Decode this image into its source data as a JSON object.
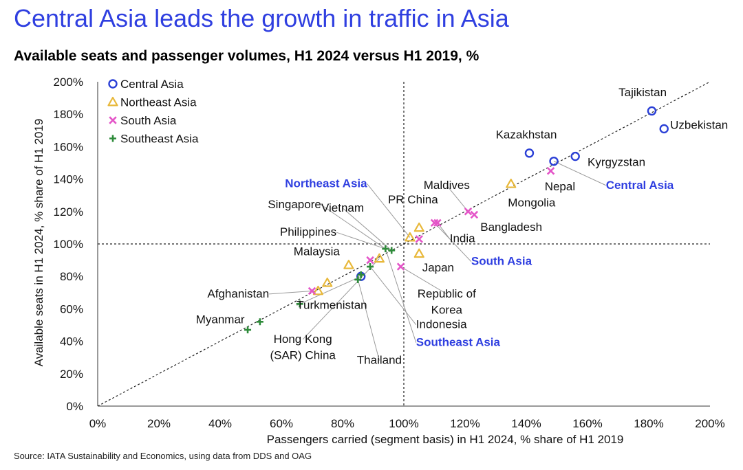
{
  "title": "Central Asia leads the growth in traffic in Asia",
  "subtitle": "Available seats and passenger volumes, H1 2024 versus H1 2019, %",
  "source": "Source: IATA Sustainability and Economics, using data from DDS and OAG",
  "colors": {
    "title": "#2f3fe0",
    "central_asia": "#2a3fd6",
    "northeast_asia": "#e8b83a",
    "south_asia": "#e455c8",
    "southeast_asia": "#2e8b3a",
    "region_label": "#2f3fe0"
  },
  "chart_data": {
    "type": "scatter",
    "title": "Available seats and passenger volumes, H1 2024 versus H1 2019, %",
    "xlabel": "Passengers carried (segment basis) in H1 2024, % share of H1 2019",
    "ylabel": "Available seats in H1 2024, % share of H1 2019",
    "xlim": [
      0,
      200
    ],
    "ylim": [
      0,
      200
    ],
    "x_ticks": [
      "0%",
      "20%",
      "40%",
      "60%",
      "80%",
      "100%",
      "120%",
      "140%",
      "160%",
      "180%",
      "200%"
    ],
    "y_ticks": [
      "0%",
      "20%",
      "40%",
      "60%",
      "80%",
      "100%",
      "120%",
      "140%",
      "160%",
      "180%",
      "200%"
    ],
    "reference_lines": {
      "diagonal": true,
      "x": 100,
      "y": 100
    },
    "legend_position": "top-left",
    "series": [
      {
        "name": "Central Asia",
        "marker": "circle",
        "color_key": "central_asia",
        "points": [
          {
            "x": 181,
            "y": 182
          },
          {
            "x": 185,
            "y": 171
          },
          {
            "x": 141,
            "y": 156
          },
          {
            "x": 149,
            "y": 151
          },
          {
            "x": 156,
            "y": 154
          },
          {
            "x": 86,
            "y": 80
          }
        ]
      },
      {
        "name": "Northeast Asia",
        "marker": "triangle",
        "color_key": "northeast_asia",
        "points": [
          {
            "x": 135,
            "y": 137
          },
          {
            "x": 105,
            "y": 110
          },
          {
            "x": 102,
            "y": 104
          },
          {
            "x": 105,
            "y": 94
          },
          {
            "x": 92,
            "y": 91
          },
          {
            "x": 82,
            "y": 87
          },
          {
            "x": 75,
            "y": 76
          },
          {
            "x": 72,
            "y": 71
          }
        ]
      },
      {
        "name": "South Asia",
        "marker": "x",
        "color_key": "south_asia",
        "points": [
          {
            "x": 148,
            "y": 145
          },
          {
            "x": 121,
            "y": 120
          },
          {
            "x": 123,
            "y": 118
          },
          {
            "x": 110,
            "y": 113
          },
          {
            "x": 111,
            "y": 113
          },
          {
            "x": 105,
            "y": 103
          },
          {
            "x": 99,
            "y": 86
          },
          {
            "x": 89,
            "y": 90
          },
          {
            "x": 70,
            "y": 71
          }
        ]
      },
      {
        "name": "Southeast Asia",
        "marker": "plus",
        "color_key": "southeast_asia",
        "points": [
          {
            "x": 94,
            "y": 97
          },
          {
            "x": 96,
            "y": 96
          },
          {
            "x": 89,
            "y": 86
          },
          {
            "x": 86,
            "y": 81
          },
          {
            "x": 85,
            "y": 78
          },
          {
            "x": 66,
            "y": 63
          },
          {
            "x": 53,
            "y": 52
          },
          {
            "x": 49,
            "y": 47
          }
        ]
      }
    ],
    "annotations": [
      {
        "text": "Tajikistan",
        "x": 181,
        "y": 182,
        "lx": 178,
        "ly": 191,
        "anchor": "middle"
      },
      {
        "text": "Uzbekistan",
        "x": 185,
        "y": 171,
        "lx": 187,
        "ly": 171,
        "anchor": "start"
      },
      {
        "text": "Kazakhstan",
        "x": 141,
        "y": 156,
        "lx": 140,
        "ly": 165,
        "anchor": "middle"
      },
      {
        "text": "Kyrgyzstan",
        "x": 156,
        "y": 154,
        "lx": 160,
        "ly": 148,
        "anchor": "start"
      },
      {
        "text": "Nepal",
        "x": 148,
        "y": 145,
        "lx": 146,
        "ly": 133,
        "anchor": "start"
      },
      {
        "text": "Central Asia",
        "x": 149,
        "y": 151,
        "lx": 166,
        "ly": 134,
        "anchor": "start",
        "region": true,
        "line": true
      },
      {
        "text": "Mongolia",
        "x": 135,
        "y": 137,
        "lx": 134,
        "ly": 123,
        "anchor": "start"
      },
      {
        "text": "Maldives",
        "x": 121,
        "y": 120,
        "lx": 114,
        "ly": 134,
        "anchor": "middle",
        "line": true
      },
      {
        "text": "Bangladesh",
        "x": 123,
        "y": 118,
        "lx": 125,
        "ly": 108,
        "anchor": "start"
      },
      {
        "text": "India",
        "x": 111,
        "y": 113,
        "lx": 115,
        "ly": 101,
        "anchor": "start",
        "line": true
      },
      {
        "text": "South Asia",
        "x": 110,
        "y": 113,
        "lx": 122,
        "ly": 87,
        "anchor": "start",
        "region": true,
        "line": true
      },
      {
        "text": "Japan",
        "x": 105,
        "y": 94,
        "lx": 106,
        "ly": 83,
        "anchor": "start"
      },
      {
        "text": "PR China",
        "x": 105,
        "y": 110,
        "lx": 103,
        "ly": 125,
        "anchor": "middle"
      },
      {
        "text": "Northeast Asia",
        "x": 102,
        "y": 104,
        "lx": 88,
        "ly": 135,
        "anchor": "end",
        "region": true,
        "line": true
      },
      {
        "text": "Singapore",
        "x": 94,
        "y": 97,
        "lx": 73,
        "ly": 122,
        "anchor": "end",
        "line": true
      },
      {
        "text": "Vietnam",
        "x": 96,
        "y": 96,
        "lx": 80,
        "ly": 120,
        "anchor": "middle",
        "line": true
      },
      {
        "text": "Philippines",
        "x": 94,
        "y": 97,
        "lx": 78,
        "ly": 105,
        "anchor": "end",
        "line": true
      },
      {
        "text": "Malaysia",
        "x": 89,
        "y": 90,
        "lx": 64,
        "ly": 93,
        "anchor": "start"
      },
      {
        "text": "Republic of",
        "x": 99,
        "y": 86,
        "lx": 114,
        "ly": 67,
        "anchor": "middle",
        "line": true
      },
      {
        "text": "Korea",
        "x": 99,
        "y": 86,
        "lx": 114,
        "ly": 57,
        "anchor": "middle"
      },
      {
        "text": "Afghanistan",
        "x": 70,
        "y": 71,
        "lx": 56,
        "ly": 67,
        "anchor": "end",
        "line": true
      },
      {
        "text": "Turkmenistan",
        "x": 86,
        "y": 80,
        "lx": 65,
        "ly": 60,
        "anchor": "start",
        "line": true
      },
      {
        "text": "Indonesia",
        "x": 89,
        "y": 86,
        "lx": 104,
        "ly": 48,
        "anchor": "start",
        "line": true
      },
      {
        "text": "Myanmar",
        "x": 53,
        "y": 52,
        "lx": 48,
        "ly": 51,
        "anchor": "end"
      },
      {
        "text": "Hong Kong",
        "x": 92,
        "y": 91,
        "lx": 67,
        "ly": 39,
        "anchor": "middle",
        "line": true
      },
      {
        "text": "(SAR) China",
        "x": 92,
        "y": 91,
        "lx": 67,
        "ly": 29,
        "anchor": "middle"
      },
      {
        "text": "Thailand",
        "x": 85,
        "y": 78,
        "lx": 92,
        "ly": 26,
        "anchor": "middle",
        "line": true
      },
      {
        "text": "Southeast Asia",
        "x": 94,
        "y": 97,
        "lx": 104,
        "ly": 37,
        "anchor": "start",
        "region": true,
        "line": true
      }
    ]
  }
}
